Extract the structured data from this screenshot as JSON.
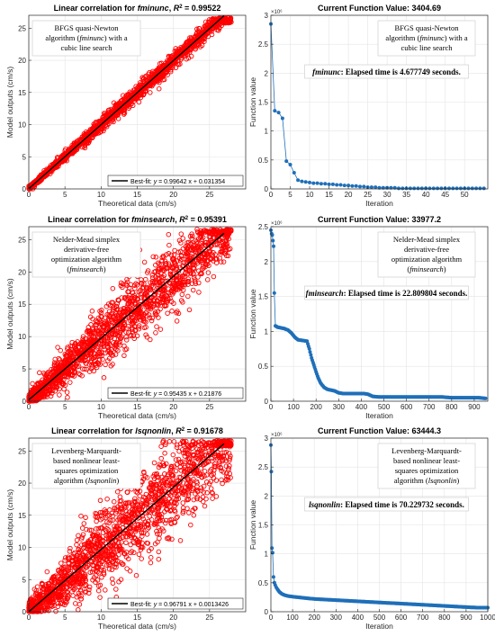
{
  "chart_data": [
    {
      "type": "scatter",
      "title_prefix": "Linear correlation for ",
      "method": "fminunc",
      "r2_label": "R",
      "r2_value": "= 0.99522",
      "xlabel": "Theoretical data (cm/s)",
      "ylabel": "Model outputs (cm/s)",
      "xlim": [
        0,
        30
      ],
      "ylim": [
        0,
        27
      ],
      "xticks": [
        0,
        5,
        10,
        15,
        20,
        25
      ],
      "yticks": [
        0,
        5,
        10,
        15,
        20,
        25
      ],
      "spread": 0.6,
      "annotation": [
        "BFGS quasi-Newton",
        "algorithm (fminunc) with a",
        "cubic line search"
      ],
      "legend_prefix": "Best-fit: ",
      "legend_eq": "y = 0.99642 x + 0.031354",
      "fit": {
        "slope": 0.99642,
        "intercept": 0.031354
      },
      "series": [
        {
          "name": "Data",
          "color": "#ff0000"
        },
        {
          "name": "Best-fit",
          "color": "#000000"
        }
      ]
    },
    {
      "type": "line",
      "title": "Current Function Value: 3404.69",
      "xlabel": "Iteration",
      "ylabel": "Function value",
      "exponent": "×10⁶",
      "xlim": [
        0,
        56
      ],
      "ylim": [
        0,
        3
      ],
      "xticks": [
        0,
        5,
        10,
        15,
        20,
        25,
        30,
        35,
        40,
        45,
        50
      ],
      "yticks": [
        0,
        0.5,
        1,
        1.5,
        2,
        2.5,
        3
      ],
      "annotation": [
        "BFGS quasi-Newton",
        "algorithm (fminunc) with a",
        "cubic line search"
      ],
      "elapsed_method": "fminunc",
      "elapsed_text": ": Elapsed time is 4.677749 seconds.",
      "color": "#1f6fb8",
      "points": [
        [
          0,
          2.85
        ],
        [
          1,
          1.35
        ],
        [
          2,
          1.32
        ],
        [
          3,
          1.22
        ],
        [
          4,
          0.48
        ],
        [
          5,
          0.42
        ],
        [
          6,
          0.28
        ],
        [
          7,
          0.15
        ],
        [
          8,
          0.13
        ],
        [
          9,
          0.12
        ],
        [
          10,
          0.11
        ],
        [
          11,
          0.1
        ],
        [
          12,
          0.1
        ],
        [
          13,
          0.09
        ],
        [
          14,
          0.09
        ],
        [
          15,
          0.08
        ],
        [
          16,
          0.08
        ],
        [
          17,
          0.07
        ],
        [
          18,
          0.07
        ],
        [
          19,
          0.06
        ],
        [
          20,
          0.06
        ],
        [
          21,
          0.05
        ],
        [
          22,
          0.05
        ],
        [
          23,
          0.04
        ],
        [
          24,
          0.04
        ],
        [
          25,
          0.03
        ],
        [
          26,
          0.03
        ],
        [
          27,
          0.03
        ],
        [
          28,
          0.02
        ],
        [
          29,
          0.02
        ],
        [
          30,
          0.02
        ],
        [
          31,
          0.02
        ],
        [
          32,
          0.02
        ],
        [
          33,
          0.01
        ],
        [
          34,
          0.01
        ],
        [
          35,
          0.01
        ],
        [
          36,
          0.01
        ],
        [
          37,
          0.01
        ],
        [
          38,
          0.01
        ],
        [
          39,
          0.01
        ],
        [
          40,
          0.01
        ],
        [
          41,
          0.01
        ],
        [
          42,
          0.01
        ],
        [
          43,
          0.01
        ],
        [
          44,
          0.01
        ],
        [
          45,
          0.01
        ],
        [
          46,
          0.01
        ],
        [
          47,
          0.01
        ],
        [
          48,
          0.01
        ],
        [
          49,
          0.01
        ],
        [
          50,
          0.01
        ],
        [
          51,
          0.01
        ],
        [
          52,
          0.01
        ],
        [
          53,
          0.01
        ],
        [
          54,
          0.01
        ],
        [
          55,
          0.01
        ]
      ]
    },
    {
      "type": "scatter",
      "title_prefix": "Linear correlation for ",
      "method": "fminsearch",
      "r2_label": "R",
      "r2_value": "= 0.95391",
      "xlabel": "Theoretical data (cm/s)",
      "ylabel": "Model outputs (cm/s)",
      "xlim": [
        0,
        30
      ],
      "ylim": [
        0,
        27
      ],
      "xticks": [
        0,
        5,
        10,
        15,
        20,
        25
      ],
      "yticks": [
        0,
        5,
        10,
        15,
        20,
        25
      ],
      "spread": 2.4,
      "annotation": [
        "Nelder-Mead  simplex",
        "derivative-free",
        "optimization  algorithm",
        "(fminsearch)"
      ],
      "legend_prefix": "Best-fit: ",
      "legend_eq": "y = 0.95435 x + 0.21876",
      "fit": {
        "slope": 0.95435,
        "intercept": 0.21876
      },
      "series": [
        {
          "name": "Data",
          "color": "#ff0000"
        },
        {
          "name": "Best-fit",
          "color": "#000000"
        }
      ]
    },
    {
      "type": "line",
      "title": "Current Function Value: 33977.2",
      "xlabel": "Iteration",
      "ylabel": "Function value",
      "exponent": "×10⁶",
      "xlim": [
        0,
        960
      ],
      "ylim": [
        0,
        2.5
      ],
      "xticks": [
        0,
        100,
        200,
        300,
        400,
        500,
        600,
        700,
        800,
        900
      ],
      "yticks": [
        0,
        0.5,
        1,
        1.5,
        2,
        2.5
      ],
      "annotation": [
        "Nelder-Mead  simplex",
        "derivative-free",
        "optimization  algorithm",
        "(fminsearch)"
      ],
      "elapsed_method": "fminsearch",
      "elapsed_text": ": Elapsed time is 22.809804 seconds.",
      "color": "#1f6fb8",
      "points": [
        [
          0,
          2.45
        ],
        [
          3,
          2.4
        ],
        [
          6,
          2.38
        ],
        [
          9,
          2.3
        ],
        [
          12,
          2.22
        ],
        [
          15,
          1.55
        ],
        [
          20,
          1.08
        ],
        [
          30,
          1.06
        ],
        [
          45,
          1.05
        ],
        [
          60,
          1.04
        ],
        [
          75,
          1.02
        ],
        [
          90,
          0.98
        ],
        [
          105,
          0.92
        ],
        [
          120,
          0.88
        ],
        [
          140,
          0.87
        ],
        [
          160,
          0.86
        ],
        [
          170,
          0.75
        ],
        [
          180,
          0.62
        ],
        [
          190,
          0.52
        ],
        [
          200,
          0.42
        ],
        [
          210,
          0.33
        ],
        [
          220,
          0.26
        ],
        [
          235,
          0.2
        ],
        [
          250,
          0.17
        ],
        [
          265,
          0.16
        ],
        [
          280,
          0.15
        ],
        [
          300,
          0.12
        ],
        [
          320,
          0.11
        ],
        [
          350,
          0.11
        ],
        [
          380,
          0.11
        ],
        [
          410,
          0.11
        ],
        [
          430,
          0.1
        ],
        [
          450,
          0.07
        ],
        [
          480,
          0.06
        ],
        [
          520,
          0.06
        ],
        [
          560,
          0.06
        ],
        [
          600,
          0.06
        ],
        [
          640,
          0.06
        ],
        [
          680,
          0.06
        ],
        [
          720,
          0.06
        ],
        [
          760,
          0.06
        ],
        [
          800,
          0.05
        ],
        [
          840,
          0.05
        ],
        [
          880,
          0.05
        ],
        [
          920,
          0.05
        ],
        [
          950,
          0.04
        ]
      ]
    },
    {
      "type": "scatter",
      "title_prefix": "Linear correlation for ",
      "method": "lsqnonlin",
      "r2_label": "R",
      "r2_value": "= 0.91678",
      "xlabel": "Theoretical data (cm/s)",
      "ylabel": "Model outputs (cm/s)",
      "xlim": [
        0,
        30
      ],
      "ylim": [
        0,
        27
      ],
      "xticks": [
        0,
        5,
        10,
        15,
        20,
        25
      ],
      "yticks": [
        0,
        5,
        10,
        15,
        20,
        25
      ],
      "spread": 3.4,
      "annotation": [
        "Levenberg-Marquardt-",
        "based  nonlinear  least-",
        "squares  optimization",
        "algorithm (lsqnonlin)"
      ],
      "legend_prefix": "Best-fit: ",
      "legend_eq": "y = 0.96791 x + 0.0013426",
      "fit": {
        "slope": 0.96791,
        "intercept": 0.0013426
      },
      "series": [
        {
          "name": "Data",
          "color": "#ff0000"
        },
        {
          "name": "Best-fit",
          "color": "#000000"
        }
      ]
    },
    {
      "type": "line",
      "title": "Current Function Value: 63444.3",
      "xlabel": "Iteration",
      "ylabel": "Function value",
      "exponent": "×10⁶",
      "xlim": [
        0,
        1000
      ],
      "ylim": [
        0,
        3
      ],
      "xticks": [
        0,
        100,
        200,
        300,
        400,
        500,
        600,
        700,
        800,
        900,
        1000
      ],
      "yticks": [
        0,
        0.5,
        1,
        1.5,
        2,
        2.5,
        3
      ],
      "annotation": [
        "Levenberg-Marquardt-",
        "based  nonlinear  least-",
        "squares  optimization",
        "algorithm (lsqnonlin)"
      ],
      "elapsed_method": "lsqnonlin",
      "elapsed_text": ": Elapsed time is 70.229732 seconds.",
      "color": "#1f6fb8",
      "points": [
        [
          0,
          2.88
        ],
        [
          2,
          2.42
        ],
        [
          5,
          1.1
        ],
        [
          8,
          1.02
        ],
        [
          12,
          0.6
        ],
        [
          16,
          0.5
        ],
        [
          20,
          0.46
        ],
        [
          25,
          0.42
        ],
        [
          30,
          0.39
        ],
        [
          40,
          0.34
        ],
        [
          50,
          0.31
        ],
        [
          60,
          0.29
        ],
        [
          80,
          0.27
        ],
        [
          100,
          0.26
        ],
        [
          150,
          0.24
        ],
        [
          200,
          0.22
        ],
        [
          250,
          0.21
        ],
        [
          300,
          0.2
        ],
        [
          350,
          0.19
        ],
        [
          400,
          0.18
        ],
        [
          450,
          0.17
        ],
        [
          500,
          0.16
        ],
        [
          550,
          0.15
        ],
        [
          600,
          0.14
        ],
        [
          650,
          0.13
        ],
        [
          700,
          0.12
        ],
        [
          750,
          0.11
        ],
        [
          800,
          0.1
        ],
        [
          850,
          0.09
        ],
        [
          900,
          0.08
        ],
        [
          950,
          0.07
        ],
        [
          1000,
          0.07
        ]
      ]
    }
  ]
}
